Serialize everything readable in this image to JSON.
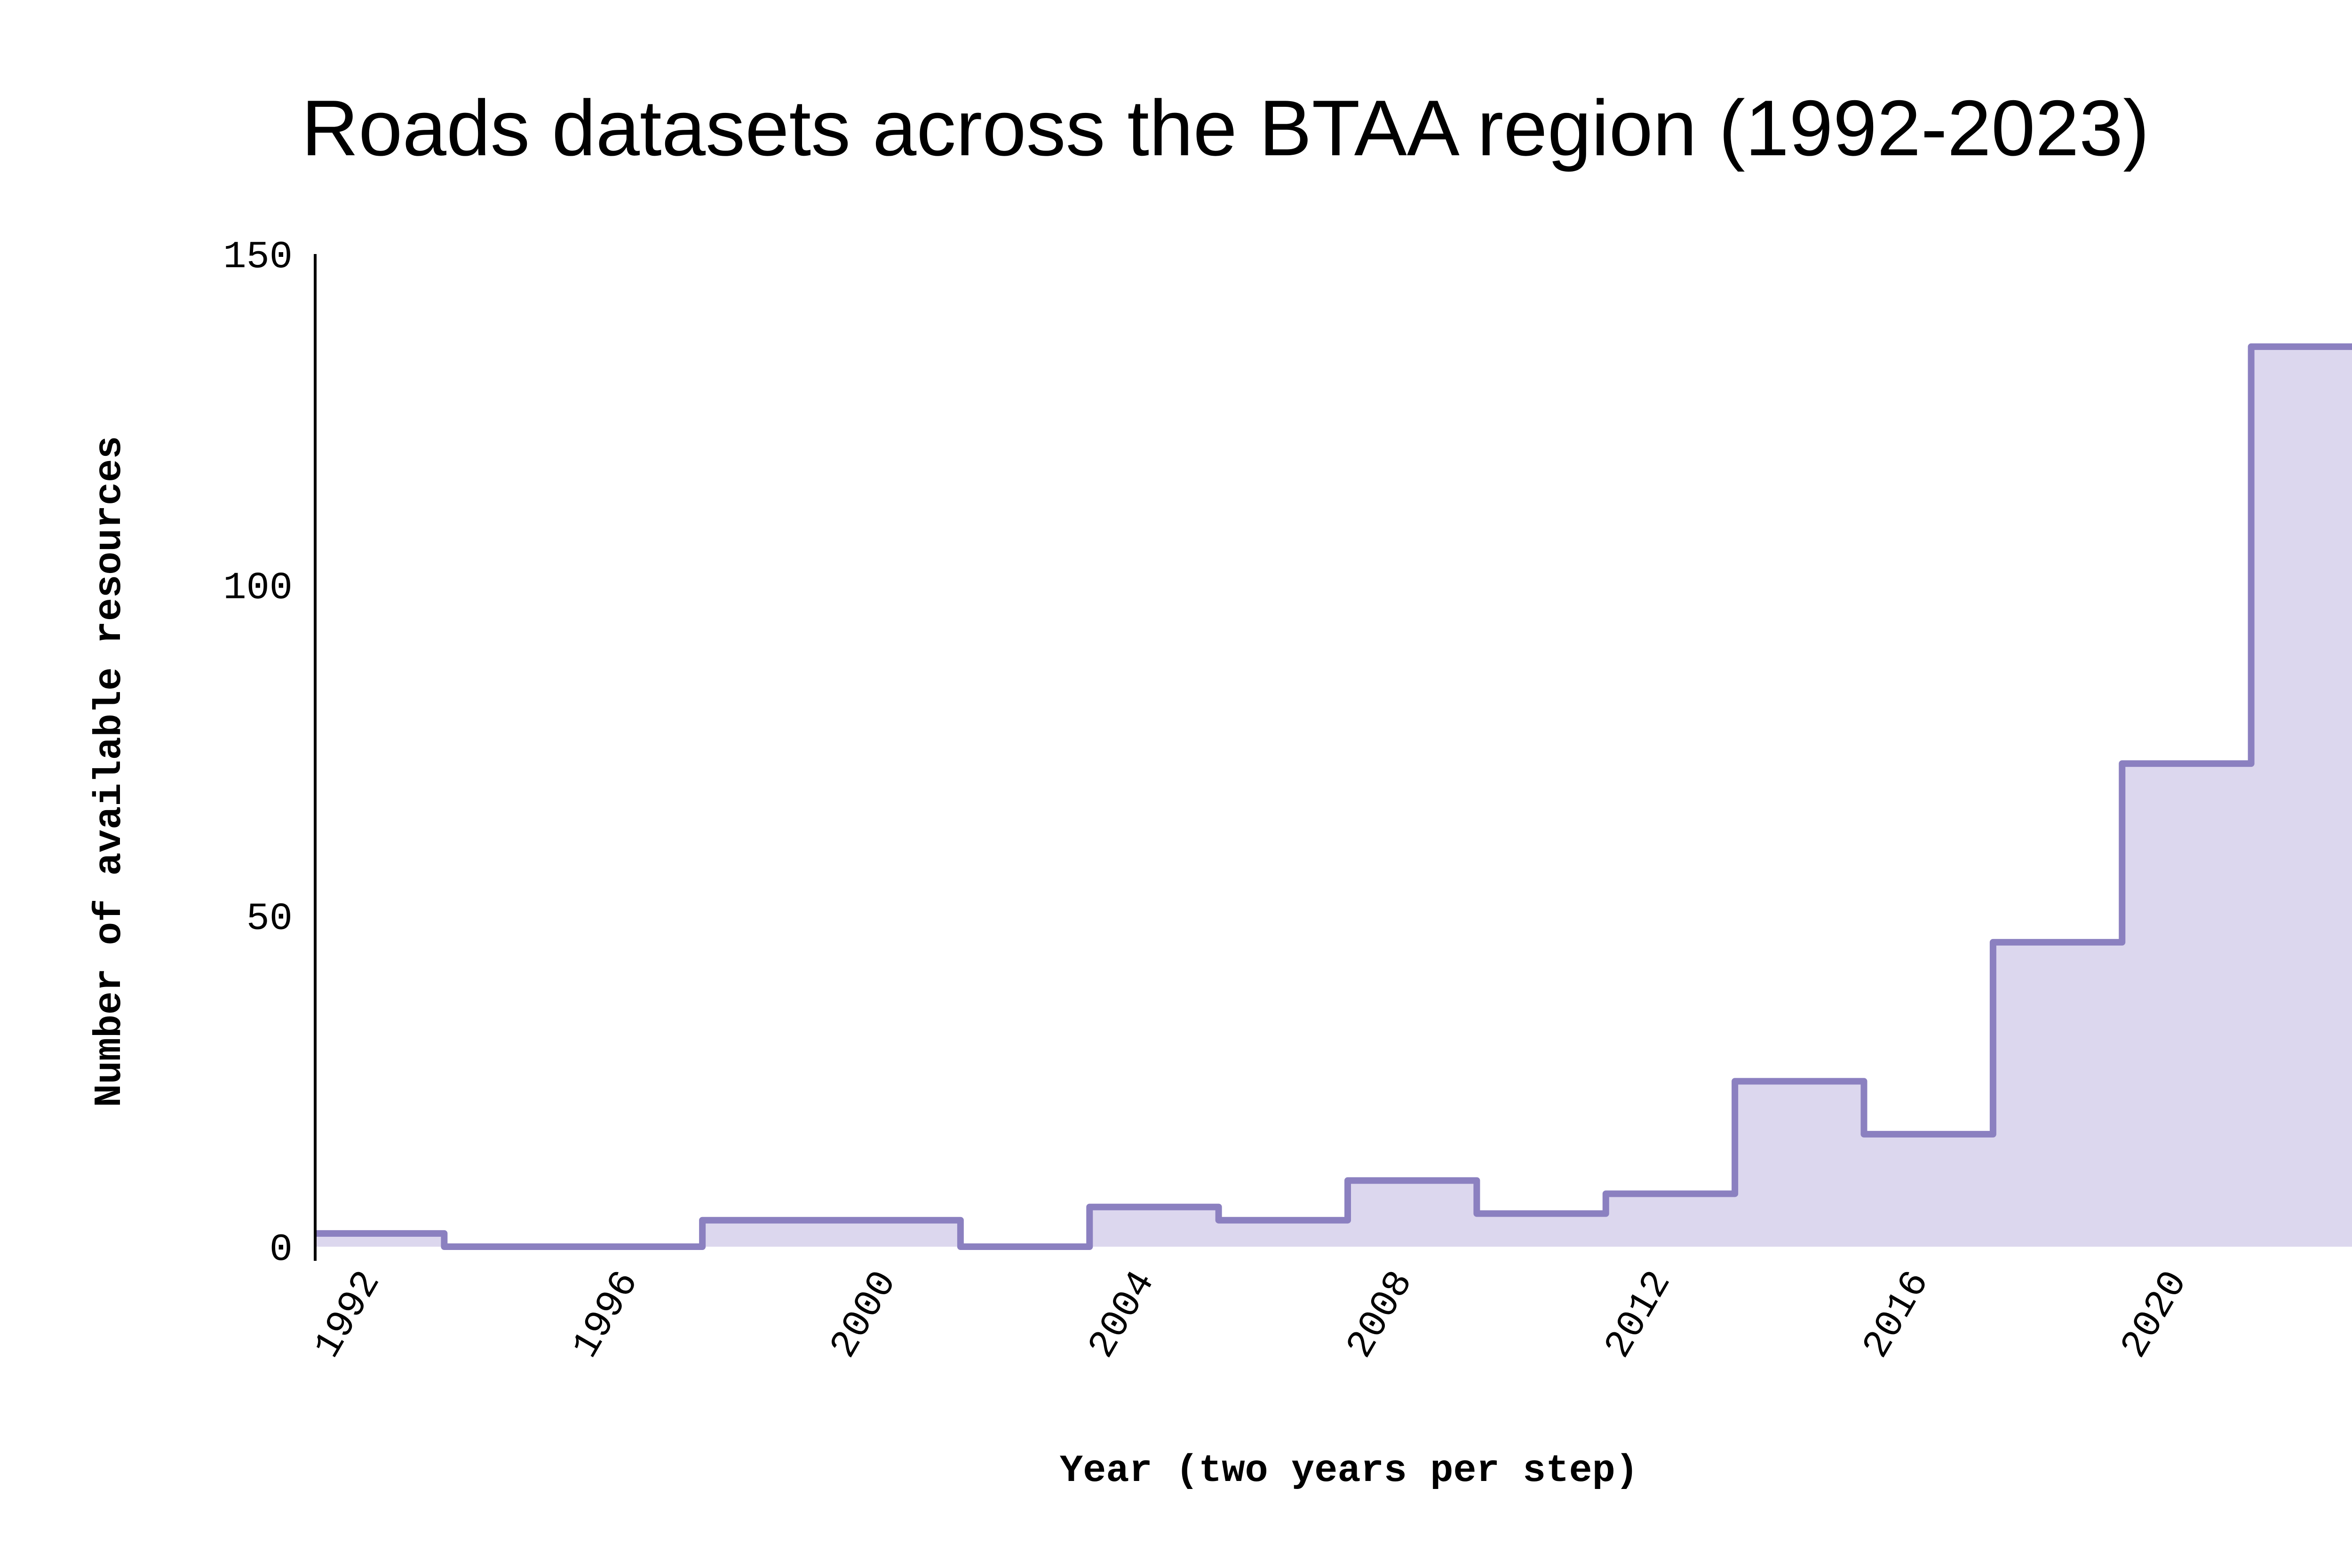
{
  "chart_data": {
    "type": "area",
    "title": "Roads datasets across the BTAA region (1992-2023)",
    "xlabel": "Year (two years per step)",
    "ylabel": "Number of available resources",
    "xlim": [
      1991,
      2023
    ],
    "ylim": [
      0,
      150
    ],
    "x_ticks": [
      1992,
      1996,
      2000,
      2004,
      2008,
      2012,
      2016,
      2020
    ],
    "x_tick_labels": [
      "1992",
      "1996",
      "2000",
      "2004",
      "2008",
      "2012",
      "2016",
      "2020"
    ],
    "y_ticks": [
      0,
      50,
      100,
      150
    ],
    "y_tick_labels": [
      "0",
      "50",
      "100",
      "150"
    ],
    "grid": false,
    "step": "post",
    "series": [
      {
        "x": [
          1991,
          1993,
          1995,
          1997,
          1999,
          2001,
          2003,
          2005,
          2007,
          2009,
          2011,
          2013,
          2015,
          2017,
          2019,
          2021
        ],
        "values": [
          2,
          0,
          0,
          4,
          4,
          0,
          6,
          4,
          10,
          5,
          8,
          25,
          17,
          46,
          73,
          136
        ],
        "line_color": "#8b80c0",
        "fill_color": "#dcd7ee"
      }
    ]
  }
}
